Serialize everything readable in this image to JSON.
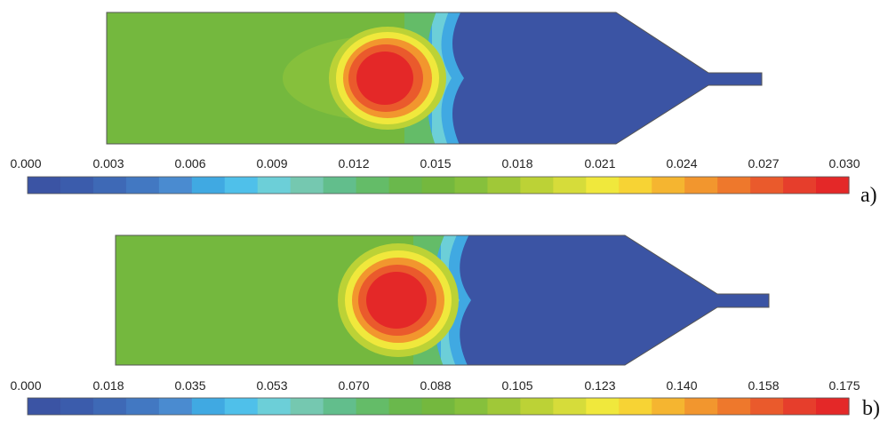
{
  "colormap": [
    "#3b54a4",
    "#3b5cac",
    "#3e69b6",
    "#4278c2",
    "#4a8bd0",
    "#40a9e2",
    "#4fc0ea",
    "#6ccfd8",
    "#75c8b0",
    "#62be8c",
    "#64bc68",
    "#6ab84c",
    "#74b83e",
    "#86c03c",
    "#a0c838",
    "#bcd236",
    "#d6dc3a",
    "#f0e83c",
    "#f7d334",
    "#f5b530",
    "#f2962e",
    "#ee782c",
    "#ea5a2c",
    "#e63e2c",
    "#e42828"
  ],
  "outline_color": "#555555",
  "panels": [
    {
      "label": "a)",
      "colorbar_ticks": [
        "0.000",
        "0.003",
        "0.006",
        "0.009",
        "0.012",
        "0.015",
        "0.018",
        "0.021",
        "0.024",
        "0.027",
        "0.030"
      ]
    },
    {
      "label": "b)",
      "colorbar_ticks": [
        "0.000",
        "0.018",
        "0.035",
        "0.053",
        "0.070",
        "0.088",
        "0.105",
        "0.123",
        "0.140",
        "0.158",
        "0.175"
      ]
    }
  ]
}
